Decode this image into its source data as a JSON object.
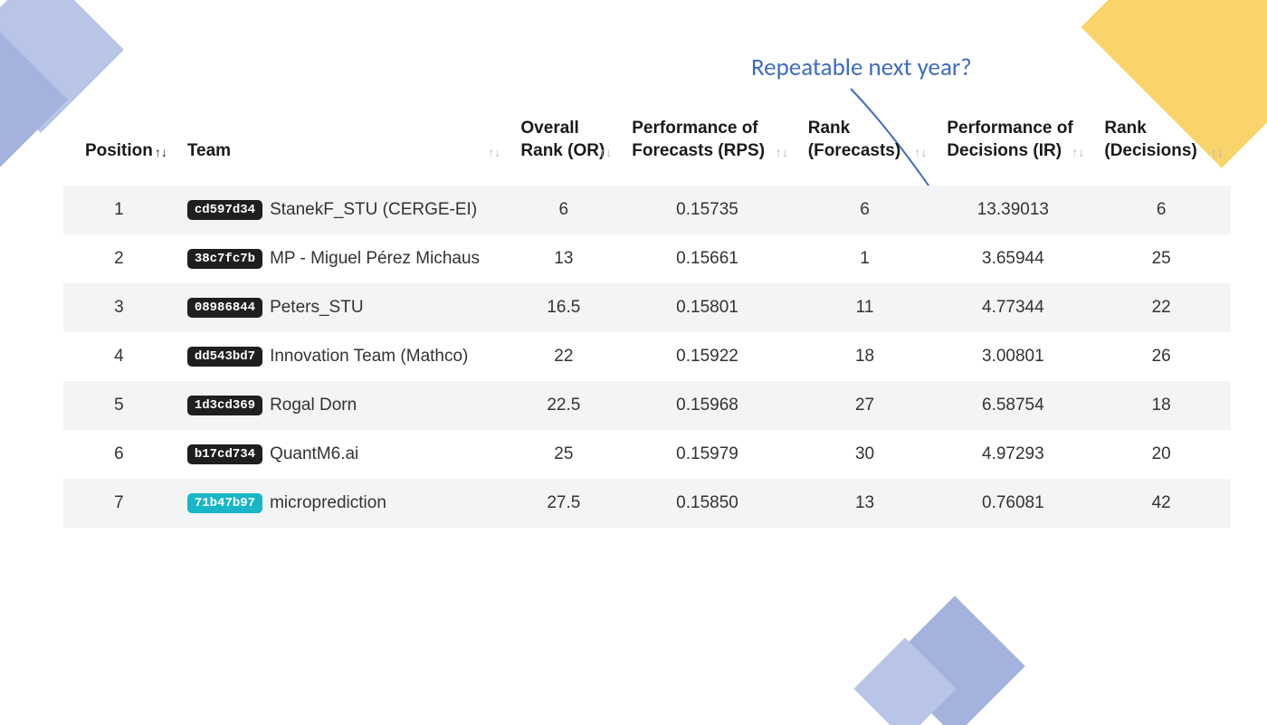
{
  "annotation": {
    "text": "Repeatable next year?",
    "color": "#3f6cc4",
    "fontsize": 27
  },
  "highlight": {
    "ellipse_fill": "#fff6a8",
    "ellipse_fill_opacity": 0.5,
    "ellipse_stroke": "#22386f",
    "ellipse_stroke_width": 2,
    "arrow_stroke": "#3f6cc4"
  },
  "decor": {
    "top_left": {
      "color1": "#b9c5e7",
      "color2": "#a3b3de"
    },
    "top_right": {
      "color": "#f8d46a"
    },
    "bottom_right": {
      "color1": "#a3b3de",
      "color2": "#b9c5e7"
    }
  },
  "table": {
    "header_fontsize": 19,
    "row_fontsize": 19,
    "stripe_bg": "#f3f4f5",
    "plain_bg": "#ffffff",
    "sort_icon_inactive": "#b6b6b6",
    "sort_icon_active": "#1a1a1a",
    "columns": [
      {
        "label": "Position",
        "key": "position",
        "sort_active": true
      },
      {
        "label": "Team",
        "key": "team"
      },
      {
        "label": "Overall Rank (OR)",
        "key": "or"
      },
      {
        "label": "Performance of Forecasts (RPS)",
        "key": "rps"
      },
      {
        "label": "Rank (Forecasts)",
        "key": "rank_f"
      },
      {
        "label": "Performance of Decisions (IR)",
        "key": "ir"
      },
      {
        "label": "Rank (Decisions)",
        "key": "rank_d"
      }
    ],
    "pill_bg": "#1f1f1f",
    "pill_teal_bg": "#18b6c6",
    "rows": [
      {
        "position": "1",
        "pill": "cd597d34",
        "pill_color": "dark",
        "team": "StanekF_STU (CERGE-EI)",
        "or": "6",
        "rps": "0.15735",
        "rank_f": "6",
        "ir": "13.39013",
        "rank_d": "6"
      },
      {
        "position": "2",
        "pill": "38c7fc7b",
        "pill_color": "dark",
        "team": "MP - Miguel Pérez Michaus",
        "or": "13",
        "rps": "0.15661",
        "rank_f": "1",
        "ir": "3.65944",
        "rank_d": "25"
      },
      {
        "position": "3",
        "pill": "08986844",
        "pill_color": "dark",
        "team": "Peters_STU",
        "or": "16.5",
        "rps": "0.15801",
        "rank_f": "11",
        "ir": "4.77344",
        "rank_d": "22"
      },
      {
        "position": "4",
        "pill": "dd543bd7",
        "pill_color": "dark",
        "team": "Innovation Team (Mathco)",
        "or": "22",
        "rps": "0.15922",
        "rank_f": "18",
        "ir": "3.00801",
        "rank_d": "26"
      },
      {
        "position": "5",
        "pill": "1d3cd369",
        "pill_color": "dark",
        "team": "Rogal Dorn",
        "or": "22.5",
        "rps": "0.15968",
        "rank_f": "27",
        "ir": "6.58754",
        "rank_d": "18"
      },
      {
        "position": "6",
        "pill": "b17cd734",
        "pill_color": "dark",
        "team": "QuantM6.ai",
        "or": "25",
        "rps": "0.15979",
        "rank_f": "30",
        "ir": "4.97293",
        "rank_d": "20"
      },
      {
        "position": "7",
        "pill": "71b47b97",
        "pill_color": "teal",
        "team": "microprediction",
        "or": "27.5",
        "rps": "0.15850",
        "rank_f": "13",
        "ir": "0.76081",
        "rank_d": "42"
      }
    ]
  }
}
